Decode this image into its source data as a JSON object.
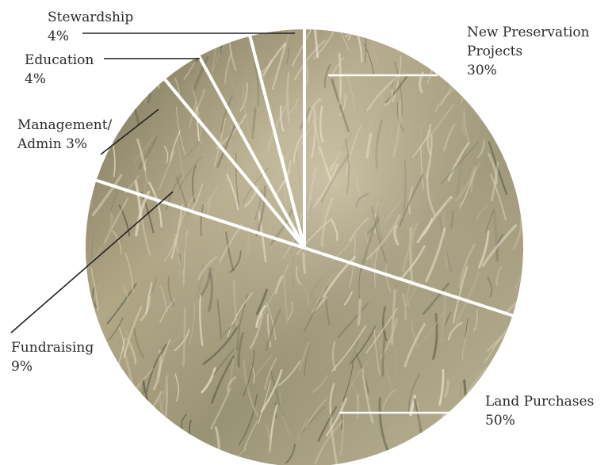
{
  "chart_data": {
    "type": "pie",
    "title": "",
    "slices": [
      {
        "label": "New Preservation Projects",
        "label_lines": [
          "New Preservation",
          "Projects",
          "30%"
        ],
        "value": 30
      },
      {
        "label": "Land Purchases",
        "label_lines": [
          "Land Purchases",
          "50%"
        ],
        "value": 50
      },
      {
        "label": "Fundraising",
        "label_lines": [
          "Fundraising",
          "9%"
        ],
        "value": 9
      },
      {
        "label": "Management/Admin",
        "label_lines": [
          "Management/",
          "Admin 3%"
        ],
        "value": 3
      },
      {
        "label": "Education",
        "label_lines": [
          "Education",
          "4%"
        ],
        "value": 4
      },
      {
        "label": "Stewardship",
        "label_lines": [
          "Stewardship",
          "4%"
        ],
        "value": 4
      }
    ],
    "start_angle_deg": 0,
    "direction": "clockwise",
    "fill": "photo of ornamental grasses",
    "separator_color": "#ffffff",
    "leader_line_colors": {
      "outside": "#222222",
      "inside": "#ffffff"
    }
  }
}
